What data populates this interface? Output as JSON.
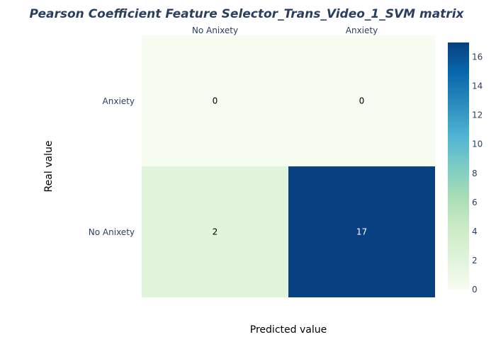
{
  "chart_data": {
    "type": "heatmap",
    "title": "Pearson Coefficient Feature Selector_Trans_Video_1_SVM matrix",
    "xlabel": "Predicted value",
    "ylabel": "Real value",
    "x_categories": [
      "No Anixety",
      "Anxiety"
    ],
    "y_categories": [
      "Anxiety",
      "No Anixety"
    ],
    "z": [
      [
        0,
        0
      ],
      [
        2,
        17
      ]
    ],
    "colorscale": "GnBu",
    "colorbar": {
      "range": [
        0,
        17
      ],
      "ticks": [
        "0",
        "2",
        "4",
        "6",
        "8",
        "10",
        "12",
        "14",
        "16"
      ]
    }
  }
}
